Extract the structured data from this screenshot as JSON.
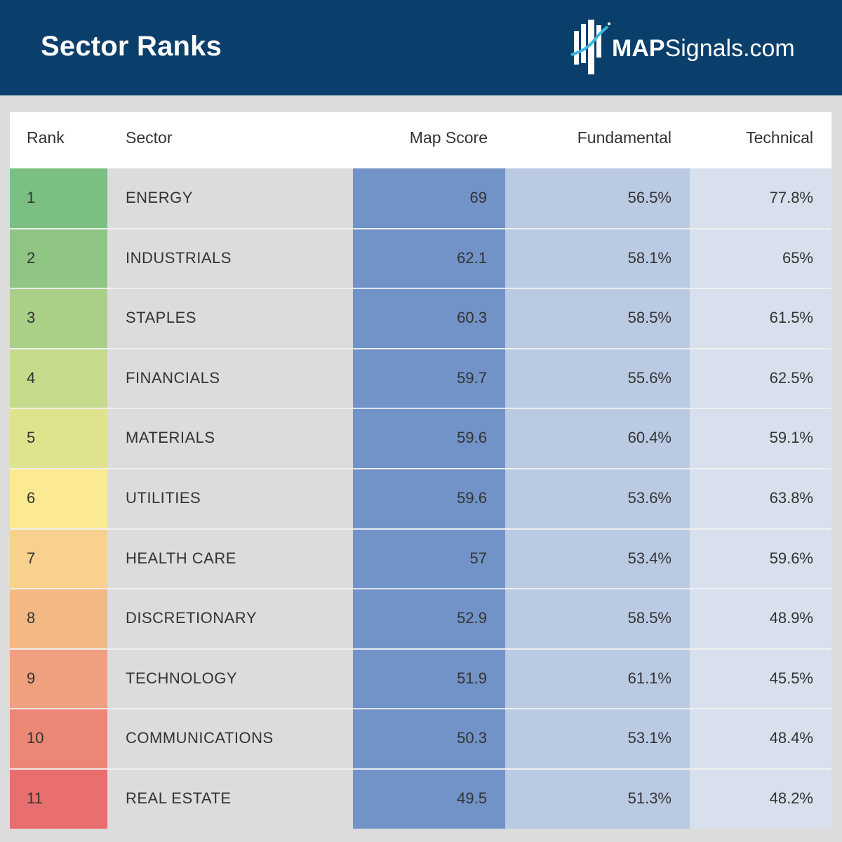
{
  "header": {
    "title": "Sector Ranks",
    "logo": {
      "bold": "MAP",
      "regular": "Signals.com"
    },
    "background": "#0b3f6b"
  },
  "chart_data": {
    "type": "table",
    "columns": [
      "Rank",
      "Sector",
      "Map Score",
      "Fundamental",
      "Technical"
    ],
    "rows": [
      {
        "rank": "1",
        "sector": "ENERGY",
        "map_score": "69",
        "fundamental": "56.5%",
        "technical": "77.8%",
        "rank_color": "#7bbf82"
      },
      {
        "rank": "2",
        "sector": "INDUSTRIALS",
        "map_score": "62.1",
        "fundamental": "58.1%",
        "technical": "65%",
        "rank_color": "#8fc683"
      },
      {
        "rank": "3",
        "sector": "STAPLES",
        "map_score": "60.3",
        "fundamental": "58.5%",
        "technical": "61.5%",
        "rank_color": "#aad088"
      },
      {
        "rank": "4",
        "sector": "FINANCIALS",
        "map_score": "59.7",
        "fundamental": "55.6%",
        "technical": "62.5%",
        "rank_color": "#c5da8b"
      },
      {
        "rank": "5",
        "sector": "MATERIALS",
        "map_score": "59.6",
        "fundamental": "60.4%",
        "technical": "59.1%",
        "rank_color": "#e0e38e"
      },
      {
        "rank": "6",
        "sector": "UTILITIES",
        "map_score": "59.6",
        "fundamental": "53.6%",
        "technical": "63.8%",
        "rank_color": "#fbea92"
      },
      {
        "rank": "7",
        "sector": "HEALTH CARE",
        "map_score": "57",
        "fundamental": "53.4%",
        "technical": "59.6%",
        "rank_color": "#f7d18d"
      },
      {
        "rank": "8",
        "sector": "DISCRETIONARY",
        "map_score": "52.9",
        "fundamental": "58.5%",
        "technical": "48.9%",
        "rank_color": "#f3b985"
      },
      {
        "rank": "9",
        "sector": "TECHNOLOGY",
        "map_score": "51.9",
        "fundamental": "61.1%",
        "technical": "45.5%",
        "rank_color": "#efa07e"
      },
      {
        "rank": "10",
        "sector": "COMMUNICATIONS",
        "map_score": "50.3",
        "fundamental": "53.1%",
        "technical": "48.4%",
        "rank_color": "#ec8775"
      },
      {
        "rank": "11",
        "sector": "REAL ESTATE",
        "map_score": "49.5",
        "fundamental": "51.3%",
        "technical": "48.2%",
        "rank_color": "#e86f6d"
      }
    ]
  }
}
